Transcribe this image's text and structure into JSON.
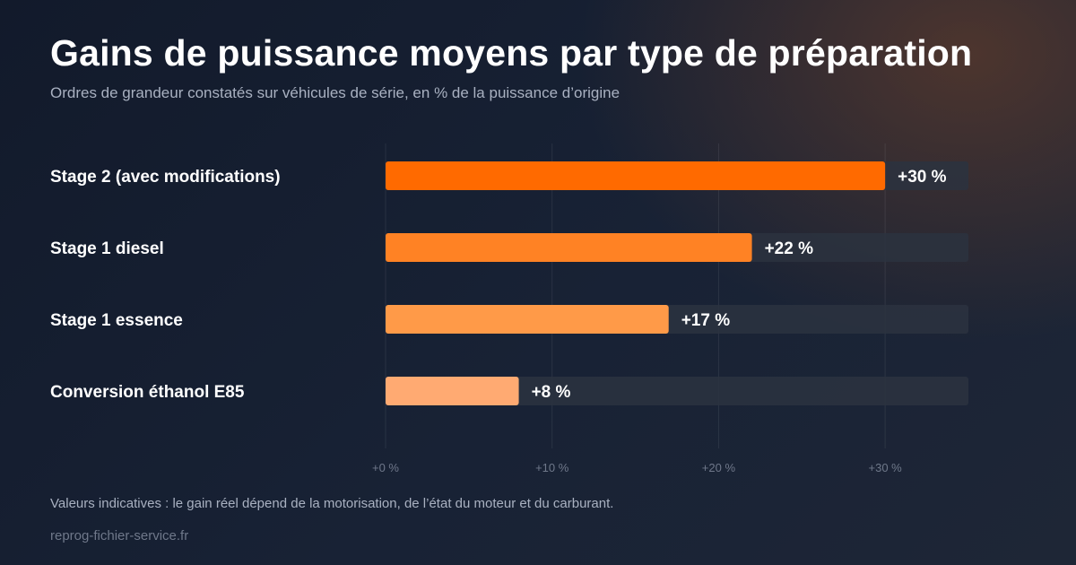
{
  "header": {
    "title": "Gains de puissance moyens par type de préparation",
    "subtitle": "Ordres de grandeur constatés sur véhicules de série, en % de la puissance d’origine"
  },
  "chart_data": {
    "type": "bar",
    "orientation": "horizontal",
    "categories": [
      "Stage 2 (avec modifications)",
      "Stage 1 diesel",
      "Stage 1 essence",
      "Conversion éthanol E85"
    ],
    "values": [
      30,
      22,
      17,
      8
    ],
    "value_labels": [
      "+30 %",
      "+22 %",
      "+17 %",
      "+8 %"
    ],
    "bar_colors": [
      "#ff6a00",
      "#ff8224",
      "#ff9a48",
      "#ffaa72"
    ],
    "track_color": "#2c323f",
    "xlim": [
      0,
      35
    ],
    "xticks": [
      0,
      10,
      20,
      30
    ],
    "xtick_labels": [
      "+0 %",
      "+10 %",
      "+20 %",
      "+30 %"
    ],
    "grid": true
  },
  "footer": {
    "note": "Valeurs indicatives : le gain réel dépend de la motorisation, de l’état du moteur et du carburant.",
    "source": "reprog-fichier-service.fr"
  }
}
